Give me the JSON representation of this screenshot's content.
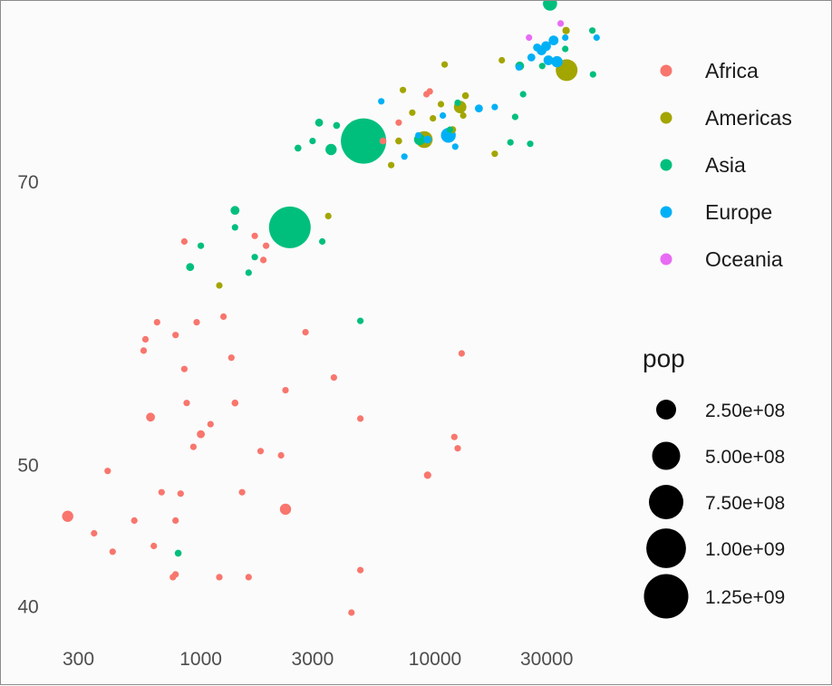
{
  "chart_data": {
    "type": "scatter",
    "title": "",
    "xlabel": "",
    "ylabel": "",
    "x_scale": "log10",
    "xlim": [
      200,
      60000
    ],
    "ylim": [
      38,
      81
    ],
    "x_ticks": [
      300,
      1000,
      3000,
      10000,
      30000
    ],
    "x_tick_labels": [
      "300",
      "1000",
      "3000",
      "10000",
      "30000"
    ],
    "y_ticks": [
      40,
      50,
      70
    ],
    "y_tick_labels": [
      "40",
      "50",
      "70"
    ],
    "grid": false,
    "legend_position": "right",
    "color_legend": {
      "title": "",
      "entries": [
        {
          "label": "Africa",
          "color": "#F8766D"
        },
        {
          "label": "Americas",
          "color": "#A3A500"
        },
        {
          "label": "Asia",
          "color": "#00BF7D"
        },
        {
          "label": "Europe",
          "color": "#00B0F6"
        },
        {
          "label": "Oceania",
          "color": "#E76BF3"
        }
      ]
    },
    "size_legend": {
      "title": "pop",
      "entries": [
        {
          "label": "2.50e+08",
          "value": 250000000
        },
        {
          "label": "5.00e+08",
          "value": 500000000
        },
        {
          "label": "7.50e+08",
          "value": 750000000
        },
        {
          "label": "1.00e+09",
          "value": 1000000000
        },
        {
          "label": "1.25e+09",
          "value": 1250000000
        }
      ]
    },
    "series": [
      {
        "name": "Africa",
        "color": "#F8766D",
        "points": [
          [
            270,
            46.4,
            80000000
          ],
          [
            350,
            45.2,
            10000000
          ],
          [
            400,
            49.6,
            10000000
          ],
          [
            420,
            43.9,
            15000000
          ],
          [
            520,
            46.1,
            15000000
          ],
          [
            570,
            58.1,
            10000000
          ],
          [
            580,
            58.9,
            10000000
          ],
          [
            610,
            53.4,
            50000000
          ],
          [
            630,
            44.3,
            10000000
          ],
          [
            650,
            60.1,
            10000000
          ],
          [
            680,
            48.1,
            15000000
          ],
          [
            760,
            42.1,
            15000000
          ],
          [
            780,
            42.3,
            10000000
          ],
          [
            780,
            46.1,
            10000000
          ],
          [
            780,
            59.2,
            10000000
          ],
          [
            820,
            48.0,
            10000000
          ],
          [
            850,
            56.8,
            15000000
          ],
          [
            850,
            65.8,
            5000000
          ],
          [
            870,
            54.4,
            10000000
          ],
          [
            930,
            51.3,
            15000000
          ],
          [
            960,
            60.1,
            15000000
          ],
          [
            1000,
            52.2,
            40000000
          ],
          [
            1100,
            52.9,
            15000000
          ],
          [
            1200,
            42.1,
            15000000
          ],
          [
            1250,
            60.5,
            25000000
          ],
          [
            1350,
            57.6,
            10000000
          ],
          [
            1400,
            54.4,
            30000000
          ],
          [
            1500,
            48.1,
            15000000
          ],
          [
            1600,
            42.1,
            10000000
          ],
          [
            1700,
            66.2,
            5000000
          ],
          [
            1800,
            51.0,
            15000000
          ],
          [
            1850,
            64.5,
            10000000
          ],
          [
            1900,
            65.5,
            10000000
          ],
          [
            2200,
            50.7,
            15000000
          ],
          [
            2300,
            55.3,
            5000000
          ],
          [
            2300,
            46.9,
            80000000
          ],
          [
            2800,
            59.4,
            25000000
          ],
          [
            3700,
            56.2,
            10000000
          ],
          [
            4400,
            39.6,
            5000000
          ],
          [
            4800,
            42.6,
            15000000
          ],
          [
            4800,
            53.3,
            5000000
          ],
          [
            6000,
            72.9,
            30000000
          ],
          [
            7000,
            74.2,
            15000000
          ],
          [
            9500,
            76.4,
            5000000
          ],
          [
            9200,
            76.2,
            5000000
          ],
          [
            9300,
            49.3,
            35000000
          ],
          [
            12100,
            52.0,
            5000000
          ],
          [
            12500,
            51.2,
            5000000
          ],
          [
            13000,
            57.9,
            5000000
          ]
        ]
      },
      {
        "name": "Americas",
        "color": "#A3A500",
        "points": [
          [
            1200,
            62.7,
            10000000
          ],
          [
            3500,
            67.6,
            10000000
          ],
          [
            6500,
            71.2,
            20000000
          ],
          [
            7000,
            72.9,
            30000000
          ],
          [
            7300,
            76.5,
            5000000
          ],
          [
            8000,
            74.9,
            15000000
          ],
          [
            9000,
            73.0,
            180000000
          ],
          [
            9800,
            74.5,
            15000000
          ],
          [
            10600,
            75.5,
            15000000
          ],
          [
            11000,
            78.3,
            5000000
          ],
          [
            11900,
            73.7,
            30000000
          ],
          [
            12800,
            75.3,
            100000000
          ],
          [
            13200,
            74.7,
            20000000
          ],
          [
            13500,
            76.1,
            30000000
          ],
          [
            18000,
            72.0,
            5000000
          ],
          [
            19300,
            78.6,
            5000000
          ],
          [
            36300,
            80.7,
            35000000
          ],
          [
            36500,
            77.9,
            300000000
          ]
        ]
      },
      {
        "name": "Asia",
        "color": "#00BF7D",
        "points": [
          [
            800,
            43.8,
            30000000
          ],
          [
            900,
            64.0,
            40000000
          ],
          [
            1000,
            65.5,
            15000000
          ],
          [
            1400,
            66.8,
            25000000
          ],
          [
            1400,
            68.0,
            50000000
          ],
          [
            1600,
            63.6,
            10000000
          ],
          [
            1700,
            64.7,
            15000000
          ],
          [
            2400,
            66.8,
            1100000000
          ],
          [
            2600,
            72.4,
            30000000
          ],
          [
            3000,
            72.9,
            25000000
          ],
          [
            3200,
            74.2,
            40000000
          ],
          [
            3300,
            65.8,
            10000000
          ],
          [
            3600,
            72.3,
            80000000
          ],
          [
            3800,
            74.0,
            30000000
          ],
          [
            4500,
            74.1,
            5000000
          ],
          [
            4800,
            60.2,
            20000000
          ],
          [
            4950,
            72.9,
            1300000000
          ],
          [
            8600,
            73.0,
            80000000
          ],
          [
            11600,
            73.7,
            15000000
          ],
          [
            12500,
            75.6,
            20000000
          ],
          [
            21000,
            72.8,
            5000000
          ],
          [
            22000,
            74.6,
            25000000
          ],
          [
            23000,
            78.2,
            50000000
          ],
          [
            23800,
            76.2,
            5000000
          ],
          [
            25500,
            72.7,
            5000000
          ],
          [
            28700,
            78.2,
            15000000
          ],
          [
            31000,
            82.6,
            125000000
          ],
          [
            36000,
            79.4,
            10000000
          ],
          [
            47300,
            77.6,
            5000000
          ],
          [
            47000,
            80.7,
            10000000
          ]
        ]
      },
      {
        "name": "Europe",
        "color": "#00B0F6",
        "points": [
          [
            5900,
            75.7,
            10000000
          ],
          [
            7400,
            71.8,
            10000000
          ],
          [
            8500,
            73.3,
            10000000
          ],
          [
            9300,
            73.0,
            40000000
          ],
          [
            10800,
            74.7,
            10000000
          ],
          [
            11400,
            73.3,
            140000000
          ],
          [
            12200,
            72.5,
            10000000
          ],
          [
            15400,
            75.2,
            40000000
          ],
          [
            18000,
            75.3,
            10000000
          ],
          [
            22800,
            78.1,
            10000000
          ],
          [
            25800,
            78.8,
            40000000
          ],
          [
            27300,
            79.5,
            40000000
          ],
          [
            28500,
            79.3,
            60000000
          ],
          [
            29800,
            79.6,
            60000000
          ],
          [
            30500,
            78.6,
            60000000
          ],
          [
            32100,
            80.0,
            60000000
          ],
          [
            33200,
            78.5,
            80000000
          ],
          [
            36000,
            80.2,
            10000000
          ],
          [
            49000,
            80.2,
            5000000
          ]
        ]
      },
      {
        "name": "Oceania",
        "color": "#E76BF3",
        "points": [
          [
            25200,
            80.2,
            5000000
          ],
          [
            34400,
            81.2,
            20000000
          ]
        ]
      }
    ]
  }
}
